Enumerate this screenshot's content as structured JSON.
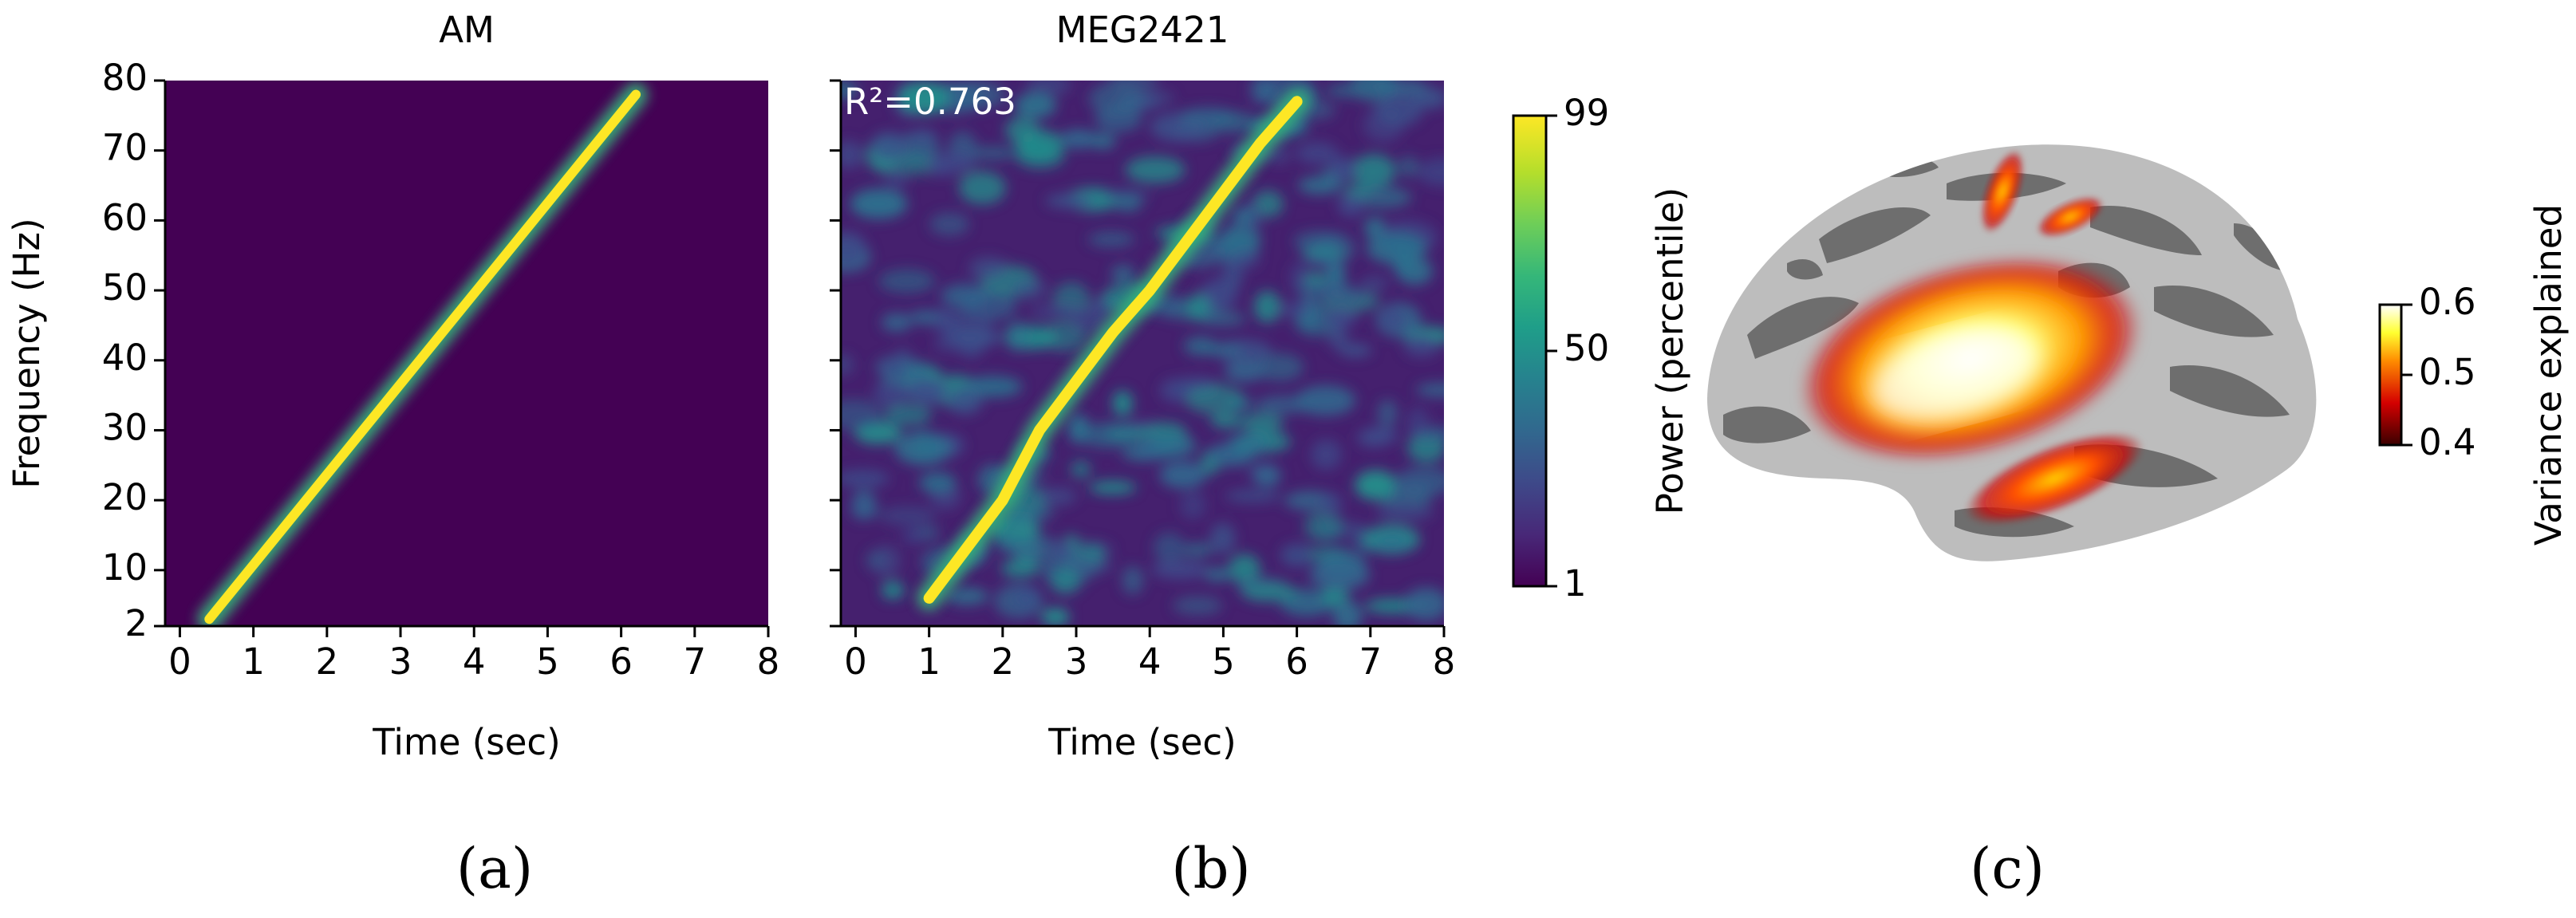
{
  "panel_labels": [
    "(a)",
    "(b)",
    "(c)"
  ],
  "chart_data": [
    {
      "type": "heatmap",
      "title": "AM",
      "xlabel": "Time (sec)",
      "ylabel": "Frequency (Hz)",
      "xlim": [
        -0.2,
        8
      ],
      "ylim": [
        2,
        80
      ],
      "xticks": [
        0,
        1,
        2,
        3,
        4,
        5,
        6,
        7,
        8
      ],
      "yticks": [
        2,
        10,
        20,
        30,
        40,
        50,
        60,
        70,
        80
      ],
      "show_ytick_labels": true,
      "colormap": "viridis",
      "noise": false,
      "x": [
        0.4,
        6.2
      ],
      "values": [
        3,
        78
      ]
    },
    {
      "type": "heatmap",
      "title": "MEG2421",
      "xlabel": "Time (sec)",
      "annotation": "R²=0.763",
      "xlim": [
        -0.2,
        8
      ],
      "ylim": [
        2,
        80
      ],
      "xticks": [
        0,
        1,
        2,
        3,
        4,
        5,
        6,
        7,
        8
      ],
      "yticks": [
        2,
        10,
        20,
        30,
        40,
        50,
        60,
        70,
        80
      ],
      "show_ytick_labels": false,
      "colormap": "viridis",
      "noise": true,
      "x": [
        1,
        2,
        2.5,
        3,
        3.5,
        4,
        4.5,
        5,
        5.5,
        6
      ],
      "values": [
        6,
        20,
        30,
        37,
        44,
        50,
        57,
        64,
        71,
        77
      ]
    },
    {
      "type": "colorbar",
      "label": "Power (percentile)",
      "lim": [
        1,
        99
      ],
      "ticks": [
        1,
        50,
        99
      ],
      "colormap": "viridis"
    },
    {
      "type": "colorbar",
      "label": "Variance explained",
      "lim": [
        0.4,
        0.6
      ],
      "ticks": [
        0.4,
        0.5,
        0.6
      ],
      "colormap": "hot"
    }
  ]
}
